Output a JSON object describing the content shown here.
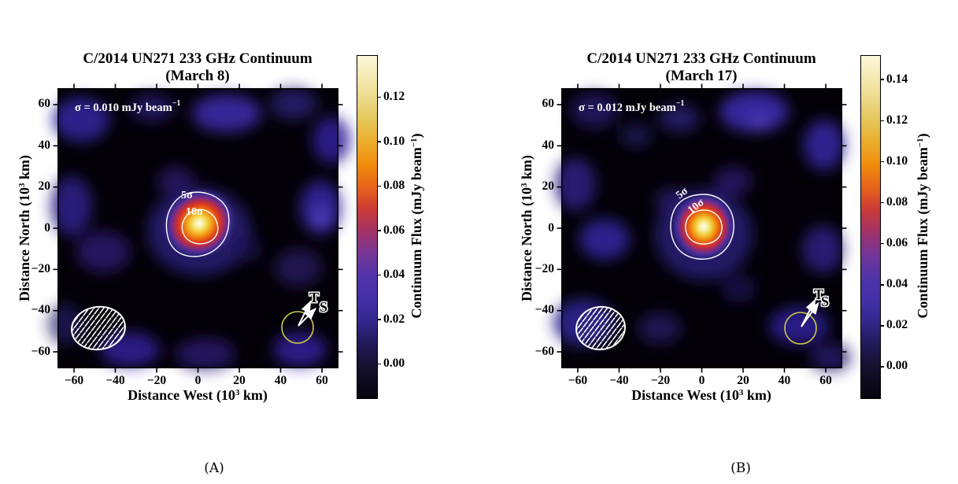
{
  "captions": {
    "a": "(A)",
    "b": "(B)"
  },
  "chart_data": [
    {
      "type": "heatmap",
      "panel": "A",
      "title_line1": "C/2014 UN271 233 GHz Continuum",
      "title_line2": "(March 8)",
      "noise_sigma": {
        "pre": "σ = 0.010 mJy beam",
        "sup": "−1"
      },
      "xlabel": {
        "pre": "Distance West (10",
        "sup": "3",
        "post": " km)"
      },
      "ylabel": {
        "pre": "Distance North (10",
        "sup": "3",
        "post": " km)"
      },
      "axis_range_10e3km": [
        -68,
        68
      ],
      "x_ticks": {
        "values": [
          -60,
          -40,
          -20,
          0,
          20,
          40,
          60
        ],
        "labels": [
          "−60",
          "−40",
          "−20",
          "0",
          "20",
          "40",
          "60"
        ]
      },
      "y_ticks": {
        "values": [
          60,
          40,
          20,
          0,
          -20,
          -40,
          -60
        ],
        "labels": [
          "60",
          "40",
          "20",
          "0",
          "−20",
          "−40",
          "−60"
        ]
      },
      "contour_labels": [
        "5σ",
        "10σ"
      ],
      "source": {
        "center_west_10e3km": 0,
        "center_north_10e3km": 2,
        "approx_peak_flux_mJy_beam": 0.135
      },
      "annotations": {
        "trail_arrow_label": "T",
        "sun_arrow_label": "S"
      },
      "colorbar": {
        "label": {
          "pre": "Continuum Flux (mJy beam",
          "sup": "−1",
          "post": ")"
        },
        "tick_labels": [
          "0.00",
          "0.02",
          "0.04",
          "0.06",
          "0.08",
          "0.10",
          "0.12"
        ],
        "tick_values": [
          0.0,
          0.02,
          0.04,
          0.06,
          0.08,
          0.1,
          0.12
        ],
        "vmin": -0.015,
        "vmax": 0.139
      }
    },
    {
      "type": "heatmap",
      "panel": "B",
      "title_line1": "C/2014 UN271 233 GHz Continuum",
      "title_line2": "(March 17)",
      "noise_sigma": {
        "pre": "σ = 0.012 mJy beam",
        "sup": "−1"
      },
      "xlabel": {
        "pre": "Distance West (10",
        "sup": "3",
        "post": " km)"
      },
      "ylabel": {
        "pre": "Distance North (10",
        "sup": "3",
        "post": " km)"
      },
      "axis_range_10e3km": [
        -68,
        68
      ],
      "x_ticks": {
        "values": [
          -60,
          -40,
          -20,
          0,
          20,
          40,
          60
        ],
        "labels": [
          "−60",
          "−40",
          "−20",
          "0",
          "20",
          "40",
          "60"
        ]
      },
      "y_ticks": {
        "values": [
          60,
          40,
          20,
          0,
          -20,
          -40,
          -60
        ],
        "labels": [
          "60",
          "40",
          "20",
          "0",
          "−20",
          "−40",
          "−60"
        ]
      },
      "contour_labels": [
        "5σ",
        "10σ"
      ],
      "source": {
        "center_west_10e3km": 1,
        "center_north_10e3km": 2,
        "approx_peak_flux_mJy_beam": 0.148
      },
      "annotations": {
        "trail_arrow_label": "T",
        "sun_arrow_label": "S"
      },
      "colorbar": {
        "label": {
          "pre": "Continuum Flux (mJy beam",
          "sup": "−1",
          "post": ")"
        },
        "tick_labels": [
          "0.00",
          "0.02",
          "0.04",
          "0.06",
          "0.08",
          "0.10",
          "0.12",
          "0.14"
        ],
        "tick_values": [
          0.0,
          0.02,
          0.04,
          0.06,
          0.08,
          0.1,
          0.12,
          0.14
        ],
        "vmin": -0.015,
        "vmax": 0.152
      }
    }
  ]
}
